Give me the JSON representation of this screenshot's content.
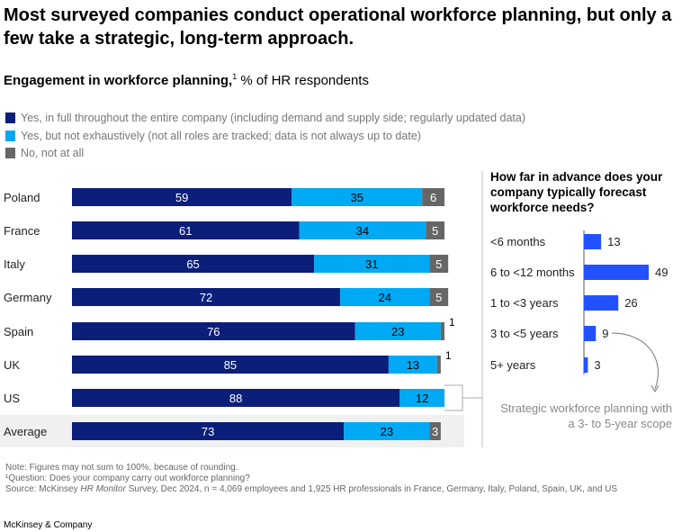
{
  "title": "Most surveyed companies conduct operational workforce planning, but only a few take a strategic, long-term approach.",
  "subtitle": {
    "bold": "Engagement in workforce planning,",
    "sup": "1",
    "rest": " % of HR respondents"
  },
  "colors": {
    "full": "#0b1f7a",
    "partial": "#00a9f4",
    "none": "#666666",
    "forecast": "#2251ff"
  },
  "chart_data": [
    {
      "type": "bar",
      "orientation": "horizontal-stacked",
      "categories": [
        "Poland",
        "France",
        "Italy",
        "Germany",
        "Spain",
        "UK",
        "US",
        "Average"
      ],
      "series": [
        {
          "name": "Yes, in full throughout the entire company (including demand and supply side; regularly updated data)",
          "values": [
            59,
            61,
            65,
            72,
            76,
            85,
            88,
            73
          ]
        },
        {
          "name": "Yes, but not exhaustively (not all roles are tracked; data is not always up to date)",
          "values": [
            35,
            34,
            31,
            24,
            23,
            13,
            12,
            23
          ]
        },
        {
          "name": "No, not at all",
          "values": [
            6,
            5,
            5,
            5,
            1,
            1,
            0,
            3
          ]
        }
      ],
      "xlim": [
        0,
        100
      ],
      "legend": "top-left"
    },
    {
      "type": "bar",
      "orientation": "horizontal",
      "title": "How far in advance does your company typically forecast workforce needs?",
      "categories": [
        "<6 months",
        "6 to <12 months",
        "1 to <3 years",
        "3 to <5 years",
        "5+ years"
      ],
      "values": [
        13,
        49,
        26,
        9,
        3
      ],
      "annotation": "Strategic workforce planning with a 3- to 5-year scope"
    }
  ],
  "notes": {
    "note": "Note: Figures may not sum to 100%, because of rounding.",
    "question": "¹Question: Does your company carry out workforce planning?",
    "source_pre": "Source: McKinsey ",
    "source_italic": "HR Monitor",
    "source_post": " Survey, Dec 2024, n = 4,069 employees and 1,925 HR professionals in France, Germany, Italy, Poland, Spain, UK, and US"
  },
  "brand": "McKinsey & Company"
}
